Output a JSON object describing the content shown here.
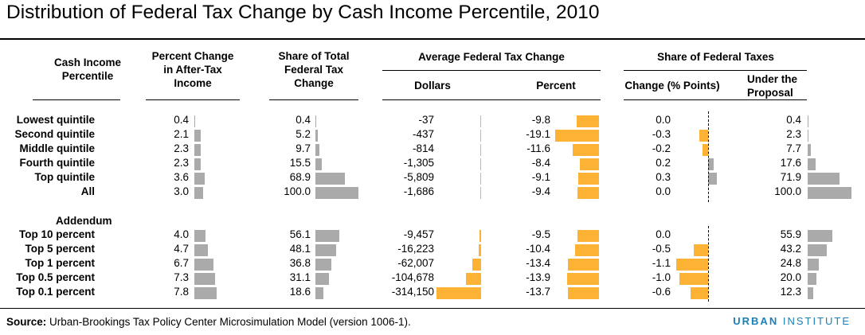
{
  "title": "Distribution of Federal Tax Change by Cash Income Percentile, 2010",
  "headers": {
    "income": "Cash Income Percentile",
    "pct_change": "Percent Change in After-Tax Income",
    "share_total": "Share of Total Federal Tax Change",
    "avg_group": "Average Federal Tax Change",
    "avg_dollars": "Dollars",
    "avg_percent": "Percent",
    "share_group": "Share of Federal Taxes",
    "share_change": "Change (% Points)",
    "share_under": "Under the Proposal"
  },
  "addendum_label": "Addendum",
  "footnote": {
    "source_label": "Source:",
    "source_text": " Urban-Brookings Tax Policy Center Microsimulation Model (version 1006-1)."
  },
  "brand": {
    "part1": "URBAN",
    "part2": " INSTITUTE"
  },
  "colors": {
    "grey_bar": "#aaaaaa",
    "gold_bar": "#fbb235"
  },
  "chart_data": {
    "type": "table",
    "title": "Distribution of Federal Tax Change by Cash Income Percentile, 2010",
    "columns": [
      "Percent Change in After-Tax Income",
      "Share of Total Federal Tax Change",
      "Average Federal Tax Change: Dollars",
      "Average Federal Tax Change: Percent",
      "Share of Federal Taxes: Change (% Points)",
      "Share of Federal Taxes: Under the Proposal"
    ],
    "rows": [
      {
        "label": "Lowest quintile",
        "values": [
          "0.4",
          "0.4",
          "-37",
          "-9.8",
          "0.0",
          "0.4"
        ]
      },
      {
        "label": "Second quintile",
        "values": [
          "2.1",
          "5.2",
          "-437",
          "-19.1",
          "-0.3",
          "2.3"
        ]
      },
      {
        "label": "Middle quintile",
        "values": [
          "2.3",
          "9.7",
          "-814",
          "-11.6",
          "-0.2",
          "7.7"
        ]
      },
      {
        "label": "Fourth quintile",
        "values": [
          "2.3",
          "15.5",
          "-1,305",
          "-8.4",
          "0.2",
          "17.6"
        ]
      },
      {
        "label": "Top quintile",
        "values": [
          "3.6",
          "68.9",
          "-5,809",
          "-9.1",
          "0.3",
          "71.9"
        ]
      },
      {
        "label": "All",
        "values": [
          "3.0",
          "100.0",
          "-1,686",
          "-9.4",
          "0.0",
          "100.0"
        ]
      }
    ],
    "addendum_rows": [
      {
        "label": "Top 10 percent",
        "values": [
          "4.0",
          "56.1",
          "-9,457",
          "-9.5",
          "0.0",
          "55.9"
        ]
      },
      {
        "label": "Top 5 percent",
        "values": [
          "4.7",
          "48.1",
          "-16,223",
          "-10.4",
          "-0.5",
          "43.2"
        ]
      },
      {
        "label": "Top 1 percent",
        "values": [
          "6.7",
          "36.8",
          "-62,007",
          "-13.4",
          "-1.1",
          "24.8"
        ]
      },
      {
        "label": "Top 0.5 percent",
        "values": [
          "7.3",
          "31.1",
          "-104,678",
          "-13.9",
          "-1.0",
          "20.0"
        ]
      },
      {
        "label": "Top 0.1 percent",
        "values": [
          "7.8",
          "18.6",
          "-314,150",
          "-13.7",
          "-0.6",
          "12.3"
        ]
      }
    ]
  }
}
